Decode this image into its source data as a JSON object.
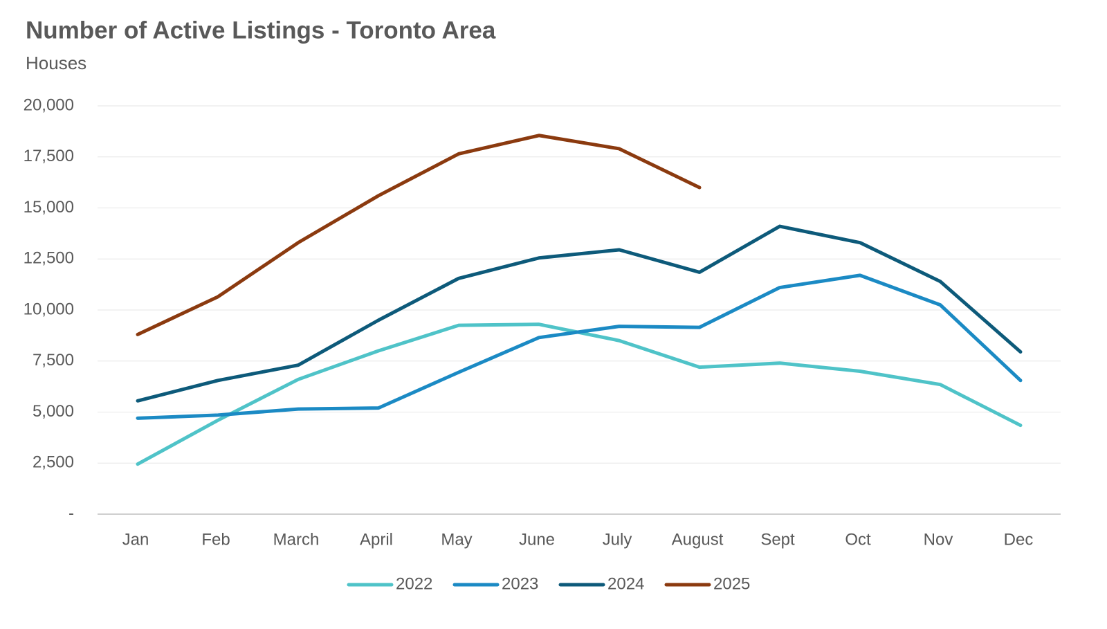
{
  "chart_data": {
    "type": "line",
    "title": "Number of Active Listings - Toronto Area",
    "subtitle": "Houses",
    "categories": [
      "Jan",
      "Feb",
      "March",
      "April",
      "May",
      "June",
      "July",
      "August",
      "Sept",
      "Oct",
      "Nov",
      "Dec"
    ],
    "series": [
      {
        "name": "2022",
        "color": "#4fc3c8",
        "values": [
          2450,
          4600,
          6600,
          8000,
          9250,
          9300,
          8500,
          7200,
          7400,
          7000,
          6350,
          4350
        ]
      },
      {
        "name": "2023",
        "color": "#1b8ac4",
        "values": [
          4700,
          4850,
          5150,
          5200,
          6950,
          8650,
          9200,
          9150,
          11100,
          11700,
          10250,
          6550
        ]
      },
      {
        "name": "2024",
        "color": "#0d5a7a",
        "values": [
          5550,
          6550,
          7300,
          9500,
          11550,
          12550,
          12950,
          11850,
          14100,
          13300,
          11400,
          7950
        ]
      },
      {
        "name": "2025",
        "color": "#8b3a0f",
        "values": [
          8800,
          10650,
          13300,
          15600,
          17650,
          18550,
          17900,
          16000,
          null,
          null,
          null,
          null
        ]
      }
    ],
    "ylim": [
      0,
      20000
    ],
    "yticks": [
      {
        "value": 0,
        "label": "-"
      },
      {
        "value": 2500,
        "label": "2,500"
      },
      {
        "value": 5000,
        "label": "5,000"
      },
      {
        "value": 7500,
        "label": "7,500"
      },
      {
        "value": 10000,
        "label": "10,000"
      },
      {
        "value": 12500,
        "label": "12,500"
      },
      {
        "value": 15000,
        "label": "15,000"
      },
      {
        "value": 17500,
        "label": "17,500"
      },
      {
        "value": 20000,
        "label": "20,000"
      }
    ],
    "grid": true,
    "legend": "bottom"
  }
}
